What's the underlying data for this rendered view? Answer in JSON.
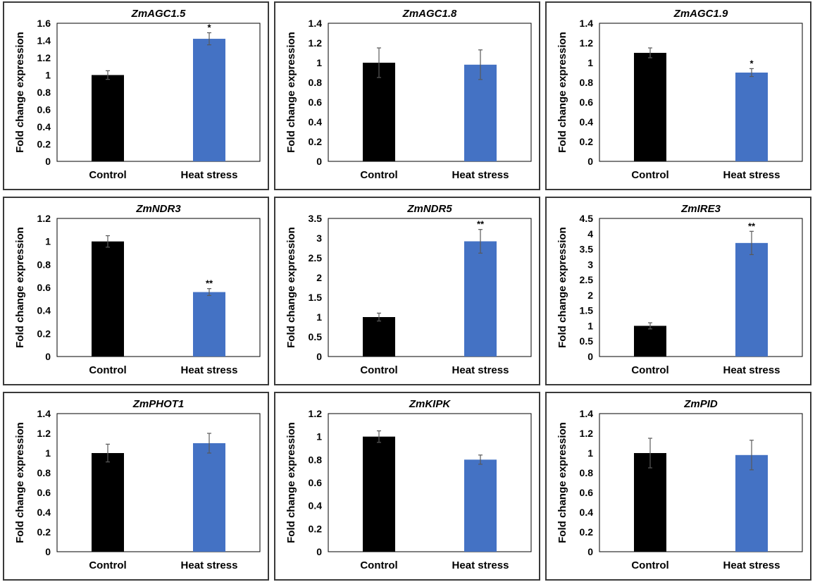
{
  "colors": {
    "control": "#000000",
    "heat": "#4472C4",
    "error_bar": "#595959",
    "axis": "#000000"
  },
  "chart_data": [
    {
      "type": "bar",
      "title": "ZmAGC1.5",
      "ylabel": "Fold change expression",
      "categories": [
        "Control",
        "Heat stress"
      ],
      "values": [
        1.0,
        1.42
      ],
      "errors": [
        0.05,
        0.07
      ],
      "significance": [
        "",
        "*"
      ],
      "ylim": [
        0,
        1.6
      ],
      "yticks": [
        "0",
        "0.2",
        "0.4",
        "0.6",
        "0.8",
        "1",
        "1.2",
        "1.4",
        "1.6"
      ]
    },
    {
      "type": "bar",
      "title": "ZmAGC1.8",
      "ylabel": "Fold change expression",
      "categories": [
        "Control",
        "Heat stress"
      ],
      "values": [
        1.0,
        0.98
      ],
      "errors": [
        0.15,
        0.15
      ],
      "significance": [
        "",
        ""
      ],
      "ylim": [
        0,
        1.4
      ],
      "yticks": [
        "0",
        "0.2",
        "0.4",
        "0.6",
        "0.8",
        "1",
        "1.2",
        "1.4"
      ]
    },
    {
      "type": "bar",
      "title": "ZmAGC1.9",
      "ylabel": "Fold change expression",
      "categories": [
        "Control",
        "Heat stress"
      ],
      "values": [
        1.1,
        0.9
      ],
      "errors": [
        0.05,
        0.04
      ],
      "significance": [
        "",
        "*"
      ],
      "ylim": [
        0,
        1.4
      ],
      "yticks": [
        "0",
        "0.2",
        "0.4",
        "0.6",
        "0.8",
        "1",
        "1.2",
        "1.4"
      ]
    },
    {
      "type": "bar",
      "title": "ZmNDR3",
      "ylabel": "Fold change expression",
      "categories": [
        "Control",
        "Heat stress"
      ],
      "values": [
        1.0,
        0.56
      ],
      "errors": [
        0.05,
        0.03
      ],
      "significance": [
        "",
        "**"
      ],
      "ylim": [
        0,
        1.2
      ],
      "yticks": [
        "0",
        "0.2",
        "0.4",
        "0.6",
        "0.8",
        "1",
        "1.2"
      ]
    },
    {
      "type": "bar",
      "title": "ZmNDR5",
      "ylabel": "Fold change expression",
      "categories": [
        "Control",
        "Heat stress"
      ],
      "values": [
        1.0,
        2.92
      ],
      "errors": [
        0.1,
        0.3
      ],
      "significance": [
        "",
        "**"
      ],
      "ylim": [
        0,
        3.5
      ],
      "yticks": [
        "0",
        "0.5",
        "1",
        "1.5",
        "2",
        "2.5",
        "3",
        "3.5"
      ]
    },
    {
      "type": "bar",
      "title": "ZmIRE3",
      "ylabel": "Fold change expression",
      "categories": [
        "Control",
        "Heat stress"
      ],
      "values": [
        1.0,
        3.7
      ],
      "errors": [
        0.1,
        0.38
      ],
      "significance": [
        "",
        "**"
      ],
      "ylim": [
        0,
        4.5
      ],
      "yticks": [
        "0",
        "0.5",
        "1",
        "1.5",
        "2",
        "2.5",
        "3",
        "3.5",
        "4",
        "4.5"
      ]
    },
    {
      "type": "bar",
      "title": "ZmPHOT1",
      "ylabel": "Fold change expression",
      "categories": [
        "Control",
        "Heat stress"
      ],
      "values": [
        1.0,
        1.1
      ],
      "errors": [
        0.09,
        0.1
      ],
      "significance": [
        "",
        ""
      ],
      "ylim": [
        0,
        1.4
      ],
      "yticks": [
        "0",
        "0.2",
        "0.4",
        "0.6",
        "0.8",
        "1",
        "1.2",
        "1.4"
      ]
    },
    {
      "type": "bar",
      "title": "ZmKIPK",
      "ylabel": "Fold change expression",
      "categories": [
        "Control",
        "Heat stress"
      ],
      "values": [
        1.0,
        0.8
      ],
      "errors": [
        0.05,
        0.04
      ],
      "significance": [
        "",
        ""
      ],
      "ylim": [
        0,
        1.2
      ],
      "yticks": [
        "0",
        "0.2",
        "0.4",
        "0.6",
        "0.8",
        "1",
        "1.2"
      ]
    },
    {
      "type": "bar",
      "title": "ZmPID",
      "ylabel": "Fold change expression",
      "categories": [
        "Control",
        "Heat stress"
      ],
      "values": [
        1.0,
        0.98
      ],
      "errors": [
        0.15,
        0.15
      ],
      "significance": [
        "",
        ""
      ],
      "ylim": [
        0,
        1.4
      ],
      "yticks": [
        "0",
        "0.2",
        "0.4",
        "0.6",
        "0.8",
        "1",
        "1.2",
        "1.4"
      ]
    }
  ]
}
